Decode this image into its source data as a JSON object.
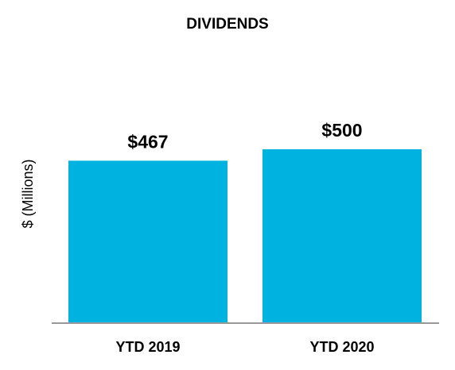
{
  "chart_data": {
    "type": "bar",
    "title": "DIVIDENDS",
    "y_label": "$ (Millions)",
    "categories": [
      "YTD 2019",
      "YTD 2020"
    ],
    "values": [
      467,
      500
    ],
    "value_labels": [
      "$467",
      "$500"
    ],
    "color": "#00b2e0"
  }
}
